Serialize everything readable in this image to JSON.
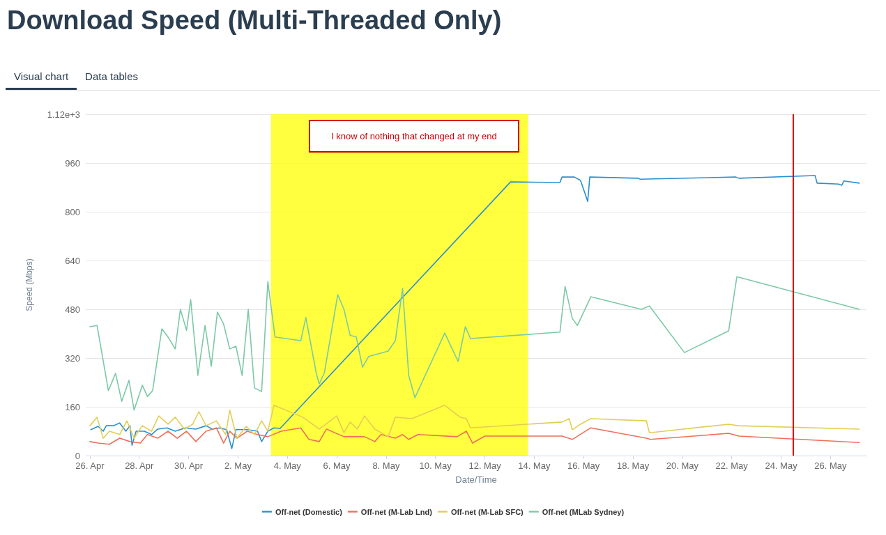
{
  "chart_data": {
    "type": "line",
    "title": "Download Speed (Multi-Threaded Only)",
    "xlabel": "Date/Time",
    "ylabel": "Speed (Mbps)",
    "annotations": [
      "Visual chart",
      "Data tables",
      "I know of nothing that changed at my end"
    ],
    "xlim": [
      "--04-25T20:00",
      "--05-27T11:00"
    ],
    "xticks": [
      {
        "value": "--04-26",
        "label": "26. Apr"
      },
      {
        "value": "--04-28",
        "label": "28. Apr"
      },
      {
        "value": "--04-30",
        "label": "30. Apr"
      },
      {
        "value": "--05-02",
        "label": "2. May"
      },
      {
        "value": "--05-04",
        "label": "4. May"
      },
      {
        "value": "--05-06",
        "label": "6. May"
      },
      {
        "value": "--05-08",
        "label": "8. May"
      },
      {
        "value": "--05-10",
        "label": "10. May"
      },
      {
        "value": "--05-12",
        "label": "12. May"
      },
      {
        "value": "--05-14",
        "label": "14. May"
      },
      {
        "value": "--05-16",
        "label": "16. May"
      },
      {
        "value": "--05-18",
        "label": "18. May"
      },
      {
        "value": "--05-20",
        "label": "20. May"
      },
      {
        "value": "--05-22",
        "label": "22. May"
      },
      {
        "value": "--05-24",
        "label": "24. May"
      },
      {
        "value": "--05-26",
        "label": "26. May"
      }
    ],
    "ylim": [
      0,
      1120
    ],
    "yticks": [
      0,
      160,
      320,
      480,
      640,
      800,
      960,
      {
        "value": 1120,
        "label": "1.12e+3"
      }
    ],
    "grid": "y",
    "legend": "bottom",
    "marker": "none",
    "line_style": "solid",
    "bands": [
      {
        "axis": "x",
        "from": "--05-03T08:00",
        "to": "--05-13T18:00",
        "color": "#ffff00"
      }
    ],
    "ref_lines": [
      {
        "axis": "x",
        "value": "--05-24T12:00",
        "color": "#e00000"
      }
    ],
    "series": [
      {
        "name": "Off-net (Domestic)",
        "color": "#2b8fd1",
        "x": [
          "--04-26T01:00",
          "--04-26T08:00",
          "--04-26T13:00",
          "--04-26T16:00",
          "--04-26T23:00",
          "--04-27T05:00",
          "--04-27T11:00",
          "--04-27T15:00",
          "--04-27T17:00",
          "--04-27T21:00",
          "--04-28T05:00",
          "--04-28T12:00",
          "--04-28T18:00",
          "--04-29T03:00",
          "--04-29T11:00",
          "--04-29T21:00",
          "--04-30T07:00",
          "--04-30T17:00",
          "--04-30T23:00",
          "--05-01T06:00",
          "--05-01T13:00",
          "--05-01T18:00",
          "--05-01T22:00",
          "--05-02T09:00",
          "--05-02T19:00",
          "--05-02T23:00",
          "--05-03T05:00",
          "--05-03T11:00",
          "--05-03T17:00",
          "--05-13T01:00",
          "--05-15T01:00",
          "--05-15T03:00",
          "--05-15T15:00",
          "--05-15T21:00",
          "--05-16T04:00",
          "--05-16T06:00",
          "--05-18T05:00",
          "--05-18T07:00",
          "--05-22T04:00",
          "--05-22T07:00",
          "--05-25T09:00",
          "--05-25T11:00",
          "--05-26T08:00",
          "--05-26T11:00",
          "--05-26T13:00",
          "--05-27T04:00"
        ],
        "values": [
          85,
          96,
          80,
          98,
          98,
          107,
          80,
          98,
          34,
          80,
          80,
          69,
          87,
          91,
          80,
          91,
          87,
          98,
          87,
          91,
          85,
          23,
          85,
          85,
          80,
          46,
          80,
          91,
          89,
          898,
          896,
          914,
          914,
          903,
          834,
          914,
          910,
          907,
          914,
          910,
          919,
          894,
          891,
          887,
          901,
          894
        ]
      },
      {
        "name": "Off-net (M-Lab Lnd)",
        "color": "#ef6f5a",
        "x": [
          "--04-26T00:00",
          "--04-26T08:00",
          "--04-26T19:00",
          "--04-27T05:00",
          "--04-27T15:00",
          "--04-28T01:00",
          "--04-28T08:00",
          "--04-28T18:00",
          "--04-29T04:00",
          "--04-29T13:00",
          "--04-29T22:00",
          "--04-30T07:00",
          "--04-30T17:00",
          "--05-01T03:00",
          "--05-01T10:00",
          "--05-01T16:00",
          "--05-01T23:00",
          "--05-02T09:00",
          "--05-02T19:00",
          "--05-03T05:00",
          "--05-03T18:00",
          "--05-04T13:00",
          "--05-04T21:00",
          "--05-05T07:00",
          "--05-05T14:00",
          "--05-06T07:00",
          "--05-07T03:00",
          "--05-07T13:00",
          "--05-07T19:00",
          "--05-08T09:00",
          "--05-08T16:00",
          "--05-08T22:00",
          "--05-09T07:00",
          "--05-10T21:00",
          "--05-11T06:00",
          "--05-11T12:00",
          "--05-12T00:00",
          "--05-15T03:00",
          "--05-15T13:00",
          "--05-16T07:00",
          "--05-18T13:00",
          "--05-18T17:00",
          "--05-21T21:00",
          "--05-22T07:00",
          "--05-27T04:00"
        ],
        "values": [
          46,
          41,
          37,
          57,
          46,
          41,
          69,
          57,
          80,
          57,
          80,
          46,
          80,
          91,
          41,
          80,
          57,
          80,
          69,
          62,
          80,
          91,
          53,
          46,
          87,
          62,
          62,
          46,
          69,
          57,
          69,
          53,
          69,
          62,
          80,
          41,
          64,
          64,
          53,
          91,
          57,
          53,
          73,
          64,
          43
        ]
      },
      {
        "name": "Off-net (M-Lab SFC)",
        "color": "#e3cd55",
        "x": [
          "--04-26T00:00",
          "--04-26T07:00",
          "--04-26T13:00",
          "--04-26T19:00",
          "--04-27T05:00",
          "--04-27T12:00",
          "--04-27T19:00",
          "--04-28T03:00",
          "--04-28T12:00",
          "--04-28T19:00",
          "--04-29T04:00",
          "--04-29T11:00",
          "--04-29T20:00",
          "--04-30T04:00",
          "--04-30T10:00",
          "--04-30T17:00",
          "--05-01T03:00",
          "--05-01T12:00",
          "--05-01T16:00",
          "--05-01T23:00",
          "--05-02T08:00",
          "--05-02T16:00",
          "--05-02T23:00",
          "--05-03T05:00",
          "--05-03T11:00",
          "--05-04T15:00",
          "--05-05T07:00",
          "--05-06T00:00",
          "--05-06T07:00",
          "--05-06T13:00",
          "--05-06T20:00",
          "--05-07T03:00",
          "--05-07T13:00",
          "--05-08T02:00",
          "--05-08T09:00",
          "--05-09T01:00",
          "--05-10T09:00",
          "--05-11T00:00",
          "--05-11T06:00",
          "--05-11T10:00",
          "--05-15T03:00",
          "--05-15T10:00",
          "--05-15T13:00",
          "--05-15T21:00",
          "--05-16T07:00",
          "--05-18T13:00",
          "--05-18T16:00",
          "--05-21T21:00",
          "--05-22T06:00",
          "--05-27T04:00"
        ],
        "values": [
          98,
          126,
          57,
          80,
          69,
          114,
          57,
          98,
          80,
          130,
          103,
          126,
          87,
          103,
          144,
          98,
          114,
          69,
          149,
          57,
          96,
          69,
          114,
          80,
          165,
          126,
          87,
          130,
          75,
          110,
          87,
          130,
          87,
          62,
          126,
          121,
          165,
          126,
          121,
          91,
          110,
          121,
          85,
          103,
          121,
          114,
          75,
          103,
          98,
          87
        ]
      },
      {
        "name": "Off-net (MLab Sydney)",
        "color": "#7cc9a5",
        "x": [
          "--04-26T00:00",
          "--04-26T07:00",
          "--04-26T18:00",
          "--04-27T01:00",
          "--04-27T07:00",
          "--04-27T14:00",
          "--04-27T19:00",
          "--04-28T03:00",
          "--04-28T08:00",
          "--04-28T13:00",
          "--04-28T22:00",
          "--04-29T04:00",
          "--04-29T11:00",
          "--04-29T16:00",
          "--04-29T22:00",
          "--04-30T02:00",
          "--04-30T09:00",
          "--04-30T16:00",
          "--04-30T22:00",
          "--05-01T04:00",
          "--05-01T10:00",
          "--05-01T16:00",
          "--05-01T22:00",
          "--05-02T04:00",
          "--05-02T10:00",
          "--05-02T16:00",
          "--05-02T23:00",
          "--05-03T05:00",
          "--05-03T12:00",
          "--05-04T13:00",
          "--05-04T18:00",
          "--05-05T04:00",
          "--05-05T07:00",
          "--05-05T12:00",
          "--05-06T01:00",
          "--05-06T07:00",
          "--05-06T13:00",
          "--05-06T19:00",
          "--05-07T01:00",
          "--05-07T07:00",
          "--05-08T02:00",
          "--05-08T09:00",
          "--05-08T16:00",
          "--05-08T22:00",
          "--05-09T04:00",
          "--05-10T09:00",
          "--05-10T22:00",
          "--05-11T05:00",
          "--05-11T10:00",
          "--05-15T01:00",
          "--05-15T06:00",
          "--05-15T13:00",
          "--05-15T18:00",
          "--05-16T07:00",
          "--05-18T08:00",
          "--05-18T16:00",
          "--05-20T02:00",
          "--05-21T21:00",
          "--05-22T05:00",
          "--05-27T04:00"
        ],
        "values": [
          423,
          427,
          213,
          270,
          178,
          247,
          149,
          231,
          194,
          213,
          416,
          389,
          350,
          480,
          411,
          512,
          263,
          427,
          293,
          471,
          432,
          350,
          359,
          263,
          480,
          222,
          210,
          571,
          389,
          377,
          453,
          272,
          235,
          272,
          528,
          480,
          395,
          389,
          290,
          325,
          343,
          377,
          549,
          263,
          190,
          402,
          309,
          423,
          384,
          405,
          555,
          450,
          427,
          521,
          480,
          491,
          338,
          409,
          587,
          480
        ]
      }
    ]
  }
}
